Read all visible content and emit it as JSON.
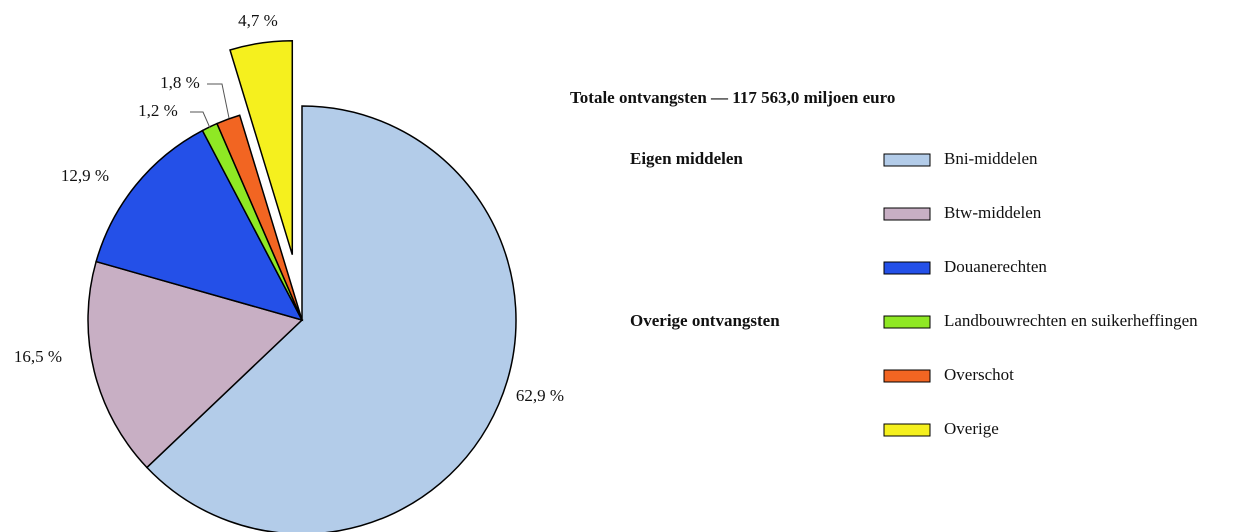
{
  "chart_data": {
    "type": "pie",
    "title": "Totale ontvangsten — 117 563,0 miljoen euro",
    "categories": [
      "Bni-middelen",
      "Btw-middelen",
      "Douanerechten",
      "Landbouwrechten en suikerheffingen",
      "Overschot",
      "Overige"
    ],
    "values": [
      62.9,
      16.5,
      12.9,
      1.2,
      1.8,
      4.7
    ],
    "value_labels": [
      "62,9 %",
      "16,5 %",
      "12,9 %",
      "1,2 %",
      "1,8 %",
      "4,7 %"
    ],
    "colors": [
      "#b3cce9",
      "#c8afc4",
      "#2450e8",
      "#8fe824",
      "#f26522",
      "#f5f01e"
    ],
    "explode": [
      false,
      false,
      false,
      false,
      false,
      true
    ],
    "legend_groups": [
      "Eigen middelen",
      "Overige ontvangsten"
    ],
    "legend": "right"
  }
}
